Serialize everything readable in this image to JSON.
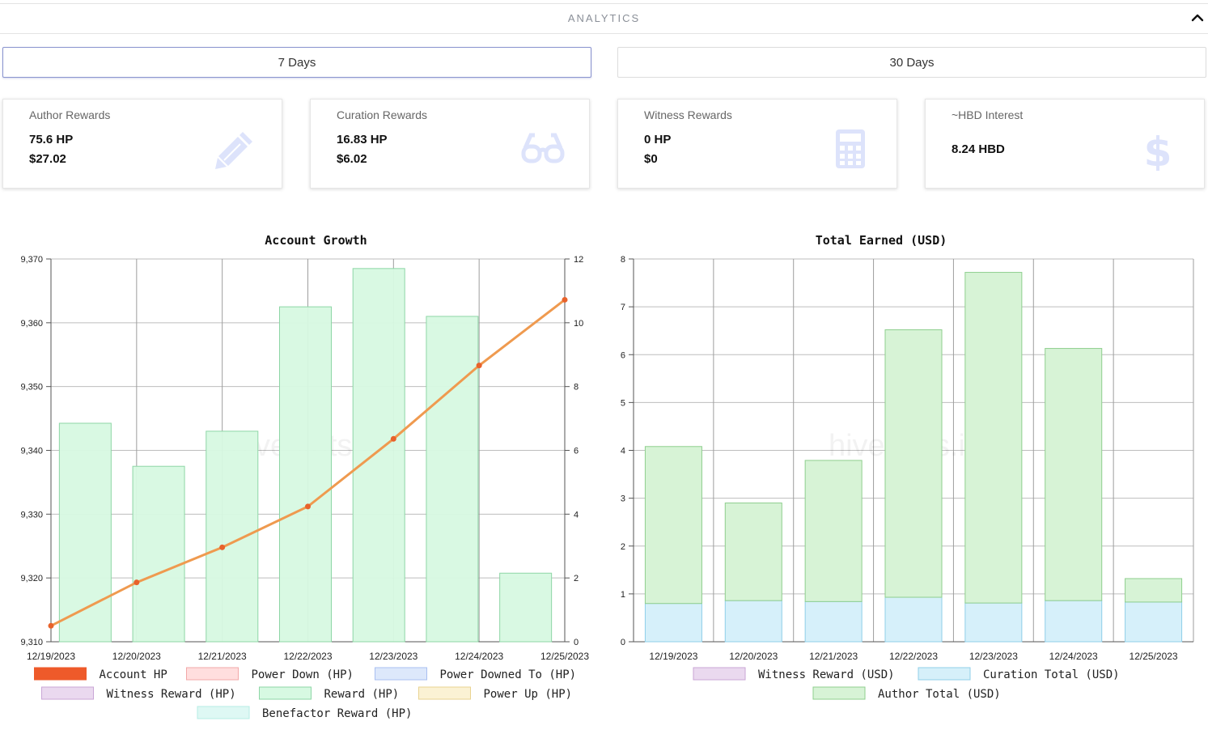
{
  "header": {
    "title": "ANALYTICS",
    "collapse_icon": "chevron-up-icon"
  },
  "tabs": [
    {
      "label": "7 Days",
      "active": true
    },
    {
      "label": "30 Days",
      "active": false
    }
  ],
  "cards": [
    {
      "title": "Author Rewards",
      "line1": "75.6 HP",
      "line2": "$27.02",
      "icon": "pencil-icon"
    },
    {
      "title": "Curation Rewards",
      "line1": "16.83 HP",
      "line2": "$6.02",
      "icon": "glasses-icon"
    },
    {
      "title": "Witness Rewards",
      "line1": "0 HP",
      "line2": "$0",
      "icon": "calculator-icon"
    },
    {
      "title": "~HBD Interest",
      "line1": "8.24 HBD",
      "line2": "",
      "icon": "dollar-icon"
    }
  ],
  "colors": {
    "icon": "#dde3fb",
    "line": "#ef9a4f",
    "point": "#e8622b",
    "bar_green": "#d7f9e2",
    "bar_cur": "#d6f0fa"
  },
  "chart_data": [
    {
      "type": "bar",
      "title": "Account Growth",
      "watermark": "hivestats.io",
      "x": [
        "12/19/2023",
        "12/20/2023",
        "12/21/2023",
        "12/22/2023",
        "12/23/2023",
        "12/24/2023",
        "12/25/2023"
      ],
      "ylim_left": [
        9310,
        9370
      ],
      "yticks_left": [
        "9,310",
        "9,320",
        "9,330",
        "9,340",
        "9,350",
        "9,360",
        "9,370"
      ],
      "ylim_right": [
        0,
        12
      ],
      "yticks_right": [
        "0",
        "2",
        "4",
        "6",
        "8",
        "10",
        "12"
      ],
      "grid": true,
      "legend_position": "bottom",
      "legend": [
        {
          "name": "Account HP",
          "color": "#ee5a2a",
          "border": "#ee5a2a"
        },
        {
          "name": "Power Down (HP)",
          "color": "#ffdede",
          "border": "#f2a8a8"
        },
        {
          "name": "Power Downed To (HP)",
          "color": "#dde8fb",
          "border": "#a9bff0"
        },
        {
          "name": "Witness Reward (HP)",
          "color": "#ead9ef",
          "border": "#c9a6d6"
        },
        {
          "name": "Reward (HP)",
          "color": "#d7f9e2",
          "border": "#8ed6a6"
        },
        {
          "name": "Power Up (HP)",
          "color": "#fbf2d4",
          "border": "#e9d391"
        },
        {
          "name": "Benefactor Reward (HP)",
          "color": "#def8f4",
          "border": "#b6ece4"
        }
      ],
      "series": [
        {
          "name": "Account HP",
          "type": "line",
          "axis": "left",
          "values": [
            9312.5,
            9319.3,
            9324.8,
            9331.2,
            9341.8,
            9353.3,
            9363.6
          ]
        },
        {
          "name": "Reward (HP)",
          "type": "bar",
          "axis": "right",
          "values": [
            6.85,
            5.5,
            6.6,
            10.5,
            11.7,
            10.2,
            2.15
          ]
        }
      ]
    },
    {
      "type": "bar",
      "title": "Total Earned (USD)",
      "watermark": "hivestats.io",
      "categories": [
        "12/19/2023",
        "12/20/2023",
        "12/21/2023",
        "12/22/2023",
        "12/23/2023",
        "12/24/2023",
        "12/25/2023"
      ],
      "ylim": [
        0,
        8
      ],
      "yticks": [
        "0",
        "1",
        "2",
        "3",
        "4",
        "5",
        "6",
        "7",
        "8"
      ],
      "stacked": true,
      "grid": true,
      "legend_position": "bottom",
      "legend": [
        {
          "name": "Witness Reward (USD)",
          "color": "#ead9ef",
          "border": "#c9a6d6"
        },
        {
          "name": "Curation Total (USD)",
          "color": "#d6f0fa",
          "border": "#90cfe8"
        },
        {
          "name": "Author Total (USD)",
          "color": "#d7f3d6",
          "border": "#8fcf8e"
        }
      ],
      "series": [
        {
          "name": "Witness Reward (USD)",
          "values": [
            0,
            0,
            0,
            0,
            0,
            0,
            0
          ]
        },
        {
          "name": "Curation Total (USD)",
          "values": [
            0.8,
            0.86,
            0.84,
            0.93,
            0.81,
            0.86,
            0.83
          ]
        },
        {
          "name": "Author Total (USD)",
          "values": [
            3.28,
            2.04,
            2.95,
            5.59,
            6.91,
            5.27,
            0.49
          ]
        }
      ]
    }
  ]
}
